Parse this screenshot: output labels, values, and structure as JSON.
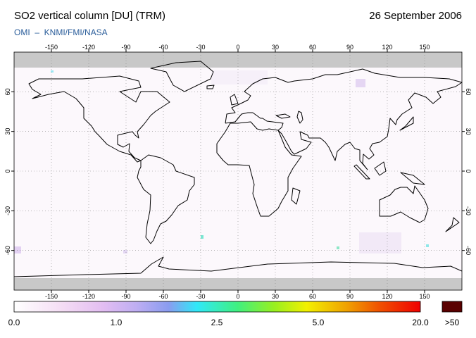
{
  "header": {
    "title": "SO2 vertical column [DU] (TRM)",
    "date": "26 September 2006",
    "source": "OMI  –  KNMI/FMI/NASA"
  },
  "map": {
    "lon_ticks": [
      -150,
      -120,
      -90,
      -60,
      -30,
      0,
      30,
      60,
      90,
      120,
      150
    ],
    "lat_ticks": [
      60,
      30,
      0,
      -30,
      -60
    ]
  },
  "colorbar": {
    "labels": [
      "0.0",
      "1.0",
      "2.5",
      "5.0",
      "20.0",
      ">50"
    ]
  }
}
